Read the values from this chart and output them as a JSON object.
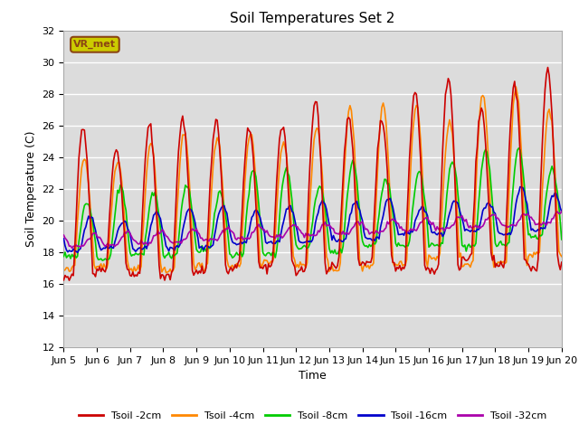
{
  "title": "Soil Temperatures Set 2",
  "xlabel": "Time",
  "ylabel": "Soil Temperature (C)",
  "ylim": [
    12,
    32
  ],
  "xlim": [
    0,
    360
  ],
  "bg_color": "#dcdcdc",
  "fig_color": "#ffffff",
  "grid_color": "#ffffff",
  "annotation_text": "VR_met",
  "annotation_bg": "#cccc00",
  "annotation_border": "#8B4513",
  "series_colors": {
    "Tsoil -2cm": "#cc0000",
    "Tsoil -4cm": "#ff8800",
    "Tsoil -8cm": "#00cc00",
    "Tsoil -16cm": "#0000cc",
    "Tsoil -32cm": "#aa00aa"
  },
  "xtick_positions": [
    0,
    24,
    48,
    72,
    96,
    120,
    144,
    168,
    192,
    216,
    240,
    264,
    288,
    312,
    336,
    360
  ],
  "xtick_labels": [
    "Jun 5",
    "Jun 6",
    "Jun 7",
    "Jun 8",
    "Jun 9",
    "Jun 10",
    "Jun 11",
    "Jun 12",
    "Jun 13",
    "Jun 14",
    "Jun 15",
    "Jun 16",
    "Jun 17",
    "Jun 18",
    "Jun 19",
    "Jun 20"
  ],
  "ytick_positions": [
    12,
    14,
    16,
    18,
    20,
    22,
    24,
    26,
    28,
    30,
    32
  ],
  "line_width": 1.2,
  "font_size": 8
}
